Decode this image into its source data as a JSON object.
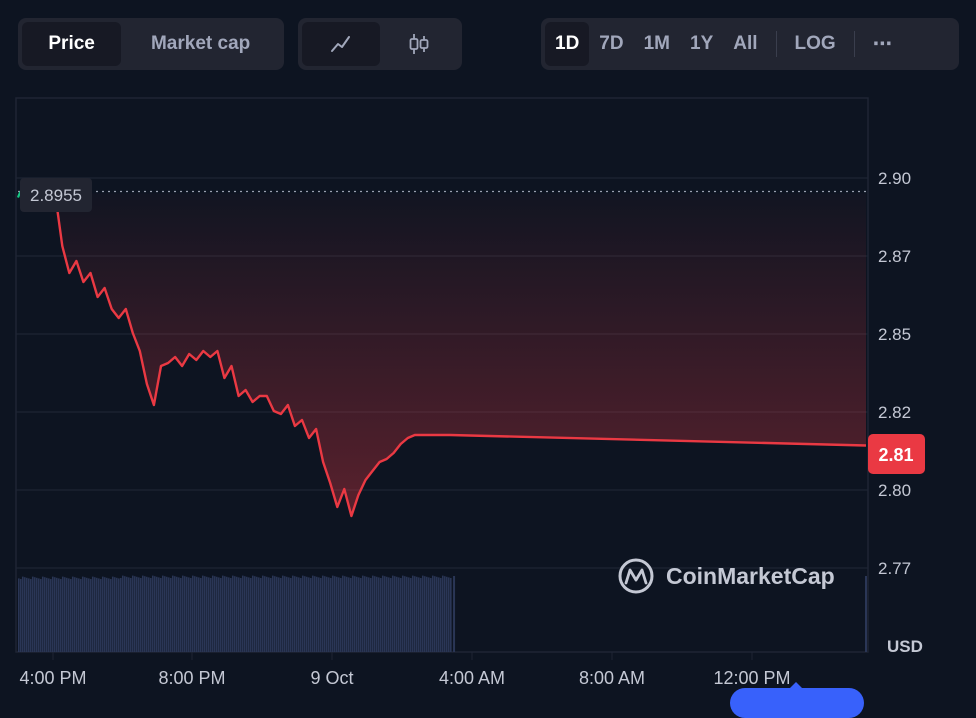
{
  "toolbar": {
    "type_tabs": [
      "Price",
      "Market cap"
    ],
    "active_type": "Price",
    "chart_styles": [
      "line-chart-icon",
      "candlestick-icon"
    ],
    "active_style": "line-chart-icon",
    "ranges": [
      "1D",
      "7D",
      "1M",
      "1Y",
      "All"
    ],
    "active_range": "1D",
    "log_label": "LOG",
    "more_label": "⋯"
  },
  "colors": {
    "line": "#ea3943",
    "start_marker": "#16c784",
    "current_badge": "#ea3943",
    "volume": "#2a3656",
    "grid": "#1e2534",
    "background": "#0d1421"
  },
  "watermark": "CoinMarketCap",
  "currency_label": "USD",
  "open_price_label": "2.8955",
  "current_price_label": "2.81",
  "chart_data": {
    "type": "line",
    "x_ticks": [
      "4:00 PM",
      "8:00 PM",
      "9 Oct",
      "4:00 AM",
      "8:00 AM",
      "12:00 PM"
    ],
    "y_ticks": [
      "2.90",
      "2.87",
      "2.85",
      "2.82",
      "2.80",
      "2.77"
    ],
    "ylim": [
      2.765,
      2.925
    ],
    "open_price": 2.8955,
    "current_price": 2.81,
    "x_hours": [
      0,
      0.2,
      0.6,
      1.0,
      1.2,
      1.4,
      1.6,
      1.8,
      2.0,
      2.2,
      2.4,
      2.6,
      2.8,
      3.0,
      3.2,
      3.4,
      3.6,
      3.8,
      4.0,
      4.2,
      4.4,
      4.6,
      4.8,
      5.0,
      5.2,
      5.4,
      5.6,
      5.8,
      6.0,
      6.2,
      6.4,
      6.6,
      6.8,
      7.0,
      7.2,
      7.4,
      7.6,
      7.8,
      8.0,
      8.2,
      8.4,
      8.6,
      8.8,
      9.0,
      9.2,
      9.4,
      9.6,
      9.8,
      10.0,
      10.2,
      10.4,
      10.6,
      10.8,
      11.0,
      11.2,
      11.4,
      11.6,
      11.8,
      12.0,
      12.2,
      24
    ],
    "values": [
      2.8955,
      2.896,
      2.896,
      2.895,
      2.878,
      2.869,
      2.873,
      2.866,
      2.869,
      2.861,
      2.864,
      2.857,
      2.854,
      2.857,
      2.849,
      2.843,
      2.832,
      2.825,
      2.838,
      2.839,
      2.841,
      2.838,
      2.842,
      2.84,
      2.843,
      2.841,
      2.843,
      2.834,
      2.838,
      2.828,
      2.83,
      2.826,
      2.828,
      2.828,
      2.823,
      2.822,
      2.825,
      2.818,
      2.82,
      2.814,
      2.817,
      2.806,
      2.799,
      2.791,
      2.797,
      2.788,
      2.795,
      2.8,
      2.803,
      2.806,
      2.807,
      2.809,
      2.812,
      2.814,
      2.815,
      2.815,
      2.815,
      2.815,
      2.815,
      2.815,
      2.8115
    ],
    "volume_until_hour": 12.2,
    "grid": true,
    "price_axis_position": "right"
  }
}
